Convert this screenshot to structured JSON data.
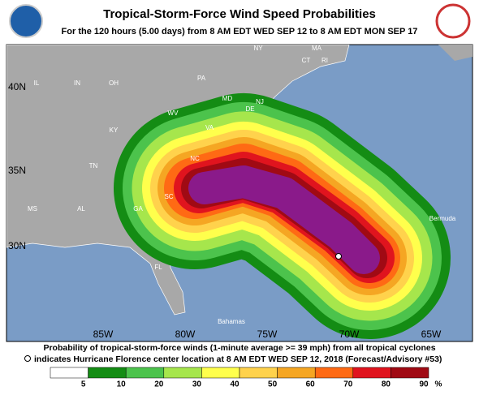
{
  "header": {
    "title": "Tropical-Storm-Force Wind Speed Probabilities",
    "subtitle": "For the 120 hours (5.00 days) from 8 AM EDT WED SEP 12 to 8 AM EDT MON SEP 17"
  },
  "map": {
    "lat_labels": [
      "40N",
      "35N",
      "30N"
    ],
    "lon_labels": [
      "85W",
      "80W",
      "75W",
      "70W",
      "65W"
    ],
    "places": [
      "IL",
      "IN",
      "OH",
      "PA",
      "NY",
      "CT",
      "RI",
      "MA",
      "WV",
      "KY",
      "VA",
      "MD",
      "DE",
      "NJ",
      "TN",
      "NC",
      "SC",
      "GA",
      "AL",
      "MS",
      "FL",
      "Bermuda",
      "Bahamas"
    ]
  },
  "caption": [
    "Probability of tropical-storm-force winds (1-minute average >= 39 mph) from all tropical cyclones",
    "indicates Hurricane Florence center location at 8 AM EDT WED SEP 12, 2018 (Forecast/Advisory #53)"
  ],
  "legend": {
    "labels": [
      5,
      10,
      20,
      30,
      40,
      50,
      60,
      70,
      80,
      90,
      "%"
    ]
  }
}
